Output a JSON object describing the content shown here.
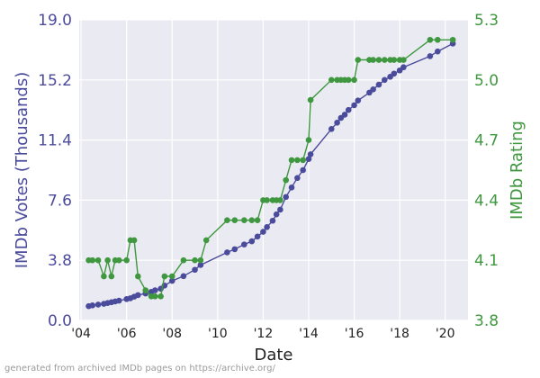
{
  "chart_data": {
    "type": "line",
    "xlabel": "Date",
    "ylabel_left": "IMDb Votes (Thousands)",
    "ylabel_right": "IMDb Rating",
    "x_range": [
      "2003-12",
      "2021-01"
    ],
    "x_ticks": [
      {
        "date": "2004-01",
        "label": "'04"
      },
      {
        "date": "2006-01",
        "label": "'06"
      },
      {
        "date": "2008-01",
        "label": "'08"
      },
      {
        "date": "2010-01",
        "label": "'10"
      },
      {
        "date": "2012-01",
        "label": "'12"
      },
      {
        "date": "2014-01",
        "label": "'14"
      },
      {
        "date": "2016-01",
        "label": "'16"
      },
      {
        "date": "2018-01",
        "label": "'18"
      },
      {
        "date": "2020-01",
        "label": "'20"
      }
    ],
    "y_left": {
      "min": 0.0,
      "max": 19.0,
      "ticks": [
        "0.0",
        "3.8",
        "7.6",
        "11.4",
        "15.2",
        "19.0"
      ],
      "color": "#4b4b9c"
    },
    "y_right": {
      "min": 3.8,
      "max": 5.3,
      "ticks": [
        "3.8",
        "4.1",
        "4.4",
        "4.7",
        "5.0",
        "5.3"
      ],
      "color": "#3f973f"
    },
    "grid": true,
    "series": [
      {
        "axis": "left",
        "color": "#4b4b9c",
        "points": [
          [
            "2004-05",
            0.9
          ],
          [
            "2004-07",
            0.95
          ],
          [
            "2004-10",
            1.0
          ],
          [
            "2005-01",
            1.05
          ],
          [
            "2005-03",
            1.1
          ],
          [
            "2005-05",
            1.15
          ],
          [
            "2005-07",
            1.2
          ],
          [
            "2005-09",
            1.25
          ],
          [
            "2006-01",
            1.35
          ],
          [
            "2006-03",
            1.4
          ],
          [
            "2006-05",
            1.5
          ],
          [
            "2006-07",
            1.6
          ],
          [
            "2006-11",
            1.7
          ],
          [
            "2007-02",
            1.8
          ],
          [
            "2007-04",
            1.9
          ],
          [
            "2007-07",
            2.0
          ],
          [
            "2007-09",
            2.2
          ],
          [
            "2008-01",
            2.5
          ],
          [
            "2008-07",
            2.8
          ],
          [
            "2009-01",
            3.2
          ],
          [
            "2009-04",
            3.5
          ],
          [
            "2010-06",
            4.3
          ],
          [
            "2010-10",
            4.5
          ],
          [
            "2011-03",
            4.8
          ],
          [
            "2011-07",
            5.0
          ],
          [
            "2011-10",
            5.3
          ],
          [
            "2012-01",
            5.6
          ],
          [
            "2012-03",
            5.9
          ],
          [
            "2012-06",
            6.3
          ],
          [
            "2012-08",
            6.7
          ],
          [
            "2012-10",
            7.0
          ],
          [
            "2013-01",
            7.8
          ],
          [
            "2013-04",
            8.4
          ],
          [
            "2013-07",
            9.0
          ],
          [
            "2013-10",
            9.5
          ],
          [
            "2014-01",
            10.2
          ],
          [
            "2014-02",
            10.5
          ],
          [
            "2015-01",
            12.1
          ],
          [
            "2015-04",
            12.5
          ],
          [
            "2015-06",
            12.8
          ],
          [
            "2015-08",
            13.0
          ],
          [
            "2015-10",
            13.3
          ],
          [
            "2016-01",
            13.6
          ],
          [
            "2016-03",
            13.9
          ],
          [
            "2016-09",
            14.4
          ],
          [
            "2016-11",
            14.6
          ],
          [
            "2017-02",
            14.9
          ],
          [
            "2017-05",
            15.2
          ],
          [
            "2017-08",
            15.4
          ],
          [
            "2017-10",
            15.6
          ],
          [
            "2018-01",
            15.8
          ],
          [
            "2018-03",
            16.0
          ],
          [
            "2019-05",
            16.7
          ],
          [
            "2019-09",
            17.0
          ],
          [
            "2020-05",
            17.5
          ]
        ]
      },
      {
        "axis": "right",
        "color": "#3f973f",
        "points": [
          [
            "2004-05",
            4.1
          ],
          [
            "2004-07",
            4.1
          ],
          [
            "2004-10",
            4.1
          ],
          [
            "2005-01",
            4.02
          ],
          [
            "2005-03",
            4.1
          ],
          [
            "2005-05",
            4.02
          ],
          [
            "2005-07",
            4.1
          ],
          [
            "2005-09",
            4.1
          ],
          [
            "2006-01",
            4.1
          ],
          [
            "2006-03",
            4.2
          ],
          [
            "2006-05",
            4.2
          ],
          [
            "2006-07",
            4.02
          ],
          [
            "2006-11",
            3.95
          ],
          [
            "2007-02",
            3.92
          ],
          [
            "2007-04",
            3.92
          ],
          [
            "2007-07",
            3.92
          ],
          [
            "2007-09",
            4.02
          ],
          [
            "2008-01",
            4.02
          ],
          [
            "2008-07",
            4.1
          ],
          [
            "2009-01",
            4.1
          ],
          [
            "2009-04",
            4.1
          ],
          [
            "2009-07",
            4.2
          ],
          [
            "2010-06",
            4.3
          ],
          [
            "2010-10",
            4.3
          ],
          [
            "2011-03",
            4.3
          ],
          [
            "2011-07",
            4.3
          ],
          [
            "2011-10",
            4.3
          ],
          [
            "2012-01",
            4.4
          ],
          [
            "2012-03",
            4.4
          ],
          [
            "2012-06",
            4.4
          ],
          [
            "2012-08",
            4.4
          ],
          [
            "2012-10",
            4.4
          ],
          [
            "2013-01",
            4.5
          ],
          [
            "2013-04",
            4.6
          ],
          [
            "2013-07",
            4.6
          ],
          [
            "2013-10",
            4.6
          ],
          [
            "2014-01",
            4.7
          ],
          [
            "2014-02",
            4.9
          ],
          [
            "2015-01",
            5.0
          ],
          [
            "2015-04",
            5.0
          ],
          [
            "2015-06",
            5.0
          ],
          [
            "2015-08",
            5.0
          ],
          [
            "2015-10",
            5.0
          ],
          [
            "2016-01",
            5.0
          ],
          [
            "2016-03",
            5.1
          ],
          [
            "2016-09",
            5.1
          ],
          [
            "2016-11",
            5.1
          ],
          [
            "2017-02",
            5.1
          ],
          [
            "2017-05",
            5.1
          ],
          [
            "2017-08",
            5.1
          ],
          [
            "2017-10",
            5.1
          ],
          [
            "2018-01",
            5.1
          ],
          [
            "2018-03",
            5.1
          ],
          [
            "2019-05",
            5.2
          ],
          [
            "2019-09",
            5.2
          ],
          [
            "2020-05",
            5.2
          ]
        ]
      }
    ]
  },
  "footer": "generated from archived IMDb pages on https://archive.org/"
}
